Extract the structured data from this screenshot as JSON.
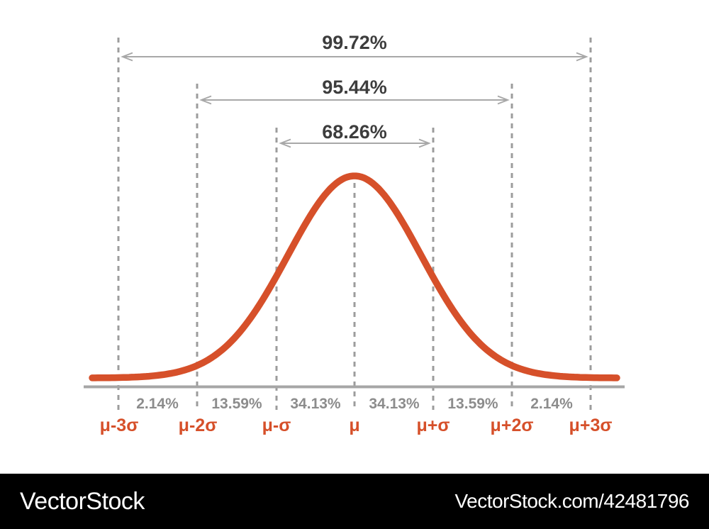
{
  "figure": {
    "background": "#ffffff"
  },
  "chart_data": {
    "type": "area",
    "title": "",
    "curve": "normal-distribution-bell-curve",
    "x_ticks": [
      "μ-3σ",
      "μ-2σ",
      "μ-σ",
      "μ",
      "μ+σ",
      "μ+2σ",
      "μ+3σ"
    ],
    "interval_arrows": [
      {
        "label": "99.72%",
        "from": "μ-3σ",
        "to": "μ+3σ"
      },
      {
        "label": "95.44%",
        "from": "μ-2σ",
        "to": "μ+2σ"
      },
      {
        "label": "68.26%",
        "from": "μ-σ",
        "to": "μ+σ"
      }
    ],
    "segment_percentages": [
      {
        "from": "μ-3σ",
        "to": "μ-2σ",
        "label": "2.14%"
      },
      {
        "from": "μ-2σ",
        "to": "μ-σ",
        "label": "13.59%"
      },
      {
        "from": "μ-σ",
        "to": "μ",
        "label": "34.13%"
      },
      {
        "from": "μ",
        "to": "μ+σ",
        "label": "34.13%"
      },
      {
        "from": "μ+σ",
        "to": "μ+2σ",
        "label": "13.59%"
      },
      {
        "from": "μ+2σ",
        "to": "μ+3σ",
        "label": "2.14%"
      }
    ],
    "colors": {
      "curve": "#d6502a",
      "tick_labels": "#d6502a",
      "interval_labels": "#3d3d3d",
      "segment_labels": "#8c8c8c",
      "dashed_lines": "#9c9c9c",
      "arrows": "#a8a8a8",
      "baseline": "#a6a6a6"
    }
  },
  "watermark": {
    "left_text": "VectorStock",
    "right_text": "VectorStock.com/42481796",
    "bar_color": "#000000",
    "text_color": "#ffffff"
  }
}
